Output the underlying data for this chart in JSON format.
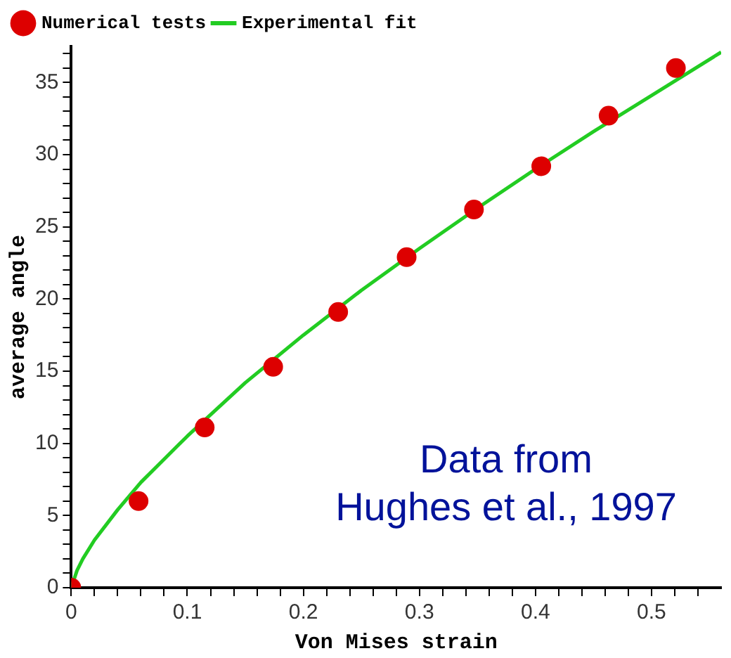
{
  "chart_data": {
    "type": "scatter",
    "xlabel": "Von Mises strain",
    "ylabel": "average angle",
    "xlim": [
      0,
      0.56
    ],
    "ylim": [
      0,
      37.5
    ],
    "xticks": [
      0,
      {
        "value": 0.02,
        "label": null
      },
      {
        "value": 0.04,
        "label": null
      },
      {
        "value": 0.06,
        "label": null
      },
      {
        "value": 0.08,
        "label": null
      },
      0.1,
      {
        "value": 0.12,
        "label": null
      },
      {
        "value": 0.14,
        "label": null
      },
      {
        "value": 0.16,
        "label": null
      },
      {
        "value": 0.18,
        "label": null
      },
      0.2,
      {
        "value": 0.22,
        "label": null
      },
      {
        "value": 0.24,
        "label": null
      },
      {
        "value": 0.26,
        "label": null
      },
      {
        "value": 0.28,
        "label": null
      },
      0.3,
      {
        "value": 0.32,
        "label": null
      },
      {
        "value": 0.34,
        "label": null
      },
      {
        "value": 0.36,
        "label": null
      },
      {
        "value": 0.38,
        "label": null
      },
      0.4,
      {
        "value": 0.42,
        "label": null
      },
      {
        "value": 0.44,
        "label": null
      },
      {
        "value": 0.46,
        "label": null
      },
      {
        "value": 0.48,
        "label": null
      },
      0.5,
      {
        "value": 0.52,
        "label": null
      },
      {
        "value": 0.54,
        "label": null
      }
    ],
    "yticks": [
      0,
      {
        "value": 1,
        "label": null
      },
      {
        "value": 2,
        "label": null
      },
      {
        "value": 3,
        "label": null
      },
      {
        "value": 4,
        "label": null
      },
      5,
      {
        "value": 6,
        "label": null
      },
      {
        "value": 7,
        "label": null
      },
      {
        "value": 8,
        "label": null
      },
      {
        "value": 9,
        "label": null
      },
      10,
      {
        "value": 11,
        "label": null
      },
      {
        "value": 12,
        "label": null
      },
      {
        "value": 13,
        "label": null
      },
      {
        "value": 14,
        "label": null
      },
      15,
      {
        "value": 16,
        "label": null
      },
      {
        "value": 17,
        "label": null
      },
      {
        "value": 18,
        "label": null
      },
      {
        "value": 19,
        "label": null
      },
      20,
      {
        "value": 21,
        "label": null
      },
      {
        "value": 22,
        "label": null
      },
      {
        "value": 23,
        "label": null
      },
      {
        "value": 24,
        "label": null
      },
      25,
      {
        "value": 26,
        "label": null
      },
      {
        "value": 27,
        "label": null
      },
      {
        "value": 28,
        "label": null
      },
      {
        "value": 29,
        "label": null
      },
      30,
      {
        "value": 31,
        "label": null
      },
      {
        "value": 32,
        "label": null
      },
      {
        "value": 33,
        "label": null
      },
      {
        "value": 34,
        "label": null
      },
      35,
      {
        "value": 36,
        "label": null
      },
      {
        "value": 37,
        "label": null
      }
    ],
    "grid": false,
    "legend": "top left",
    "series": [
      {
        "name": "Numerical tests",
        "marker": "circle",
        "color": "#dd0000",
        "x": [
          0,
          0.058,
          0.115,
          0.174,
          0.23,
          0.289,
          0.347,
          0.405,
          0.463,
          0.521
        ],
        "values": [
          0,
          6.0,
          11.1,
          15.3,
          19.1,
          22.9,
          26.2,
          29.2,
          32.7,
          36.0
        ]
      },
      {
        "name": "Experimental fit",
        "type": "line",
        "marker": "none",
        "line_style": "solid",
        "color": "#22cc22",
        "x": [
          0,
          0.005,
          0.01,
          0.02,
          0.04,
          0.06,
          0.08,
          0.1,
          0.15,
          0.2,
          0.25,
          0.3,
          0.35,
          0.4,
          0.45,
          0.5,
          0.56
        ],
        "values": [
          0,
          1.2,
          2.0,
          3.3,
          5.4,
          7.3,
          8.9,
          10.5,
          14.2,
          17.5,
          20.6,
          23.5,
          26.3,
          29.0,
          31.6,
          34.1,
          37.1
        ]
      }
    ],
    "annotations": [
      "Data from Hughes et al., 1997"
    ]
  }
}
